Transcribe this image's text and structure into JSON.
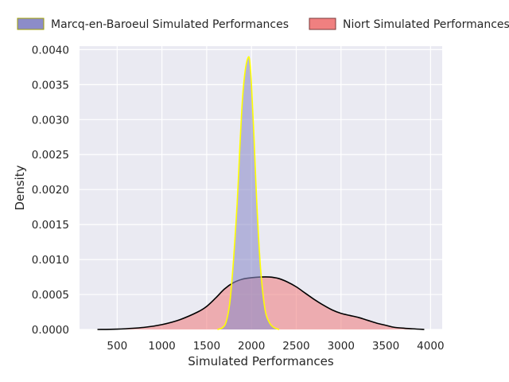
{
  "chart_data": {
    "type": "area",
    "title": "",
    "xlabel": "Simulated Performances",
    "ylabel": "Density",
    "xlim": [
      80,
      4130
    ],
    "ylim": [
      0,
      0.00405
    ],
    "xticks": [
      500,
      1000,
      1500,
      2000,
      2500,
      3000,
      3500,
      4000
    ],
    "yticks": [
      0,
      0.0005,
      0.001,
      0.0015,
      0.002,
      0.0025,
      0.003,
      0.0035,
      0.004
    ],
    "ytick_labels": [
      "0.0000",
      "0.0005",
      "0.0010",
      "0.0015",
      "0.0020",
      "0.0025",
      "0.0030",
      "0.0035",
      "0.0040"
    ],
    "grid": true,
    "legend_position": "top",
    "series": [
      {
        "name": "Marcq-en-Baroeul Simulated Performances",
        "fill": "#8c8cc8",
        "line": "#ffff00",
        "x": [
          1620,
          1680,
          1720,
          1760,
          1800,
          1840,
          1870,
          1900,
          1930,
          1960,
          1980,
          2000,
          2030,
          2060,
          2100,
          2150,
          2200,
          2250,
          2310
        ],
        "y": [
          0,
          3e-05,
          0.00012,
          0.0004,
          0.001,
          0.0018,
          0.0026,
          0.0033,
          0.0037,
          0.00388,
          0.00385,
          0.0035,
          0.0027,
          0.0018,
          0.0009,
          0.0003,
          0.0001,
          3e-05,
          0
        ]
      },
      {
        "name": "Niort Simulated Performances",
        "fill": "#f08080",
        "line": "#000000",
        "x": [
          280,
          500,
          800,
          1000,
          1200,
          1400,
          1500,
          1600,
          1700,
          1800,
          1900,
          2000,
          2100,
          2200,
          2300,
          2400,
          2500,
          2600,
          2700,
          2800,
          2900,
          3000,
          3100,
          3200,
          3300,
          3400,
          3500,
          3600,
          3800,
          3930
        ],
        "y": [
          0,
          5e-06,
          3e-05,
          7e-05,
          0.00014,
          0.00025,
          0.00033,
          0.00045,
          0.00058,
          0.00067,
          0.00072,
          0.00074,
          0.00075,
          0.00075,
          0.00073,
          0.00068,
          0.00061,
          0.00052,
          0.00043,
          0.00035,
          0.00028,
          0.00023,
          0.0002,
          0.00017,
          0.00013,
          9e-05,
          6e-05,
          3e-05,
          1e-05,
          0
        ]
      }
    ]
  }
}
